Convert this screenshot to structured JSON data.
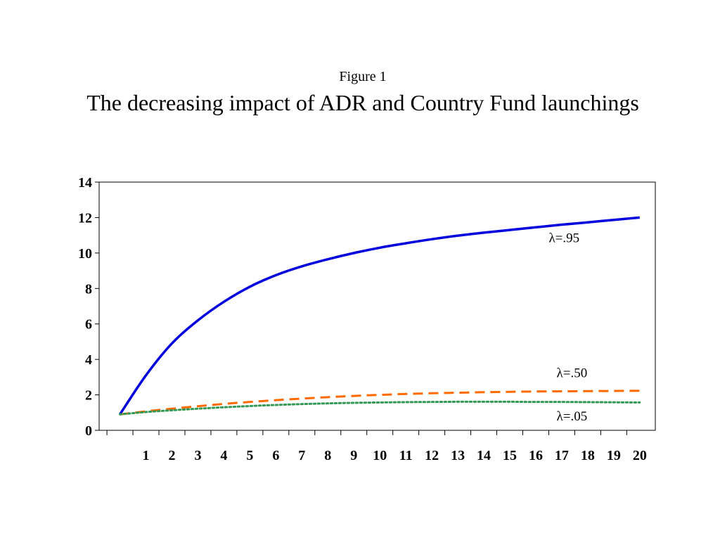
{
  "figure_label": "Figure 1",
  "chart_data": {
    "type": "line",
    "title": "The decreasing impact of ADR and Country Fund launchings",
    "xlabel": "",
    "ylabel": "",
    "x": [
      0,
      1,
      2,
      3,
      4,
      5,
      6,
      7,
      8,
      9,
      10,
      11,
      12,
      13,
      14,
      15,
      16,
      17,
      18,
      19,
      20
    ],
    "x_ticks": [
      1,
      2,
      3,
      4,
      5,
      6,
      7,
      8,
      9,
      10,
      11,
      12,
      13,
      14,
      15,
      16,
      17,
      18,
      19,
      20
    ],
    "y_ticks": [
      0,
      2,
      4,
      6,
      8,
      10,
      12,
      14
    ],
    "xlim": [
      -0.8,
      20.6
    ],
    "ylim": [
      0,
      14
    ],
    "grid": false,
    "legend": "none",
    "series": [
      {
        "name": "λ=.95",
        "color": "#0000dd",
        "style": "solid",
        "values": [
          0.9,
          3.1,
          4.9,
          6.2,
          7.25,
          8.1,
          8.75,
          9.25,
          9.65,
          10.0,
          10.3,
          10.55,
          10.78,
          10.98,
          11.15,
          11.3,
          11.45,
          11.6,
          11.73,
          11.87,
          12.0
        ]
      },
      {
        "name": "λ=.50",
        "color": "#ff6a00",
        "style": "dashed",
        "values": [
          0.9,
          1.07,
          1.22,
          1.36,
          1.49,
          1.6,
          1.7,
          1.79,
          1.87,
          1.94,
          2.0,
          2.05,
          2.09,
          2.12,
          2.15,
          2.17,
          2.19,
          2.2,
          2.21,
          2.22,
          2.23
        ]
      },
      {
        "name": "λ=.05",
        "color": "#339955",
        "style": "dotted",
        "values": [
          0.9,
          1.03,
          1.13,
          1.22,
          1.3,
          1.37,
          1.43,
          1.48,
          1.52,
          1.55,
          1.57,
          1.59,
          1.6,
          1.61,
          1.61,
          1.61,
          1.6,
          1.6,
          1.59,
          1.58,
          1.57
        ]
      }
    ]
  }
}
